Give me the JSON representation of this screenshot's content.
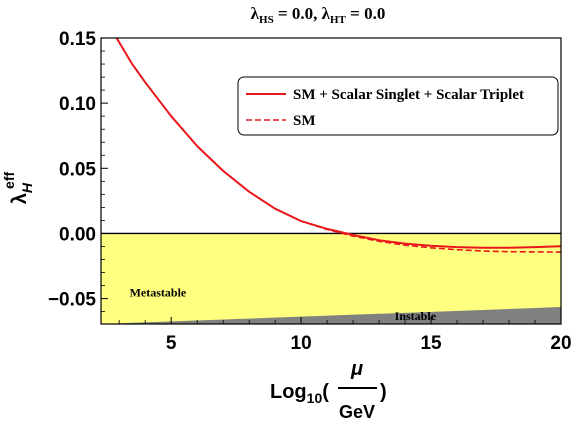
{
  "chart_data": {
    "type": "line",
    "title": {
      "lambda": "λ",
      "sub1": "HS",
      "mid": " = 0.0, ",
      "sub2": "HT",
      "tail": " = 0.0"
    },
    "ylabel": {
      "main": "λ",
      "sub": "H",
      "sup": "eff"
    },
    "xlabel": {
      "pre": "Log",
      "sub": "10",
      "open": "(",
      "num": "μ",
      "den": "GeV",
      "close": ")"
    },
    "xlim": [
      2.3,
      20
    ],
    "ylim": [
      -0.0695,
      0.15
    ],
    "xticks": [
      5,
      10,
      15,
      20
    ],
    "xtick_labels": [
      "5",
      "10",
      "15",
      "20"
    ],
    "yticks": [
      -0.05,
      0.0,
      0.05,
      0.1,
      0.15
    ],
    "ytick_labels": [
      "−0.05",
      "0.00",
      "0.05",
      "0.10",
      "0.15"
    ],
    "colors": {
      "series": "#e8181c",
      "metastable": "#ffff80",
      "unstable": "#808080",
      "zero_line": "#000000"
    },
    "regions": {
      "metastable_label": "Metastable",
      "unstable_label": "Instable",
      "unstable_boundary": {
        "x": [
          2.3,
          20
        ],
        "y": [
          -0.0695,
          -0.0565
        ]
      }
    },
    "legend": {
      "position": "upper-right"
    },
    "series": [
      {
        "name": "SM + Scalar Singlet + Scalar Triplet",
        "style": "solid",
        "x": [
          2.9,
          3.5,
          4,
          5,
          6,
          7,
          8,
          9,
          10,
          11,
          11.5,
          12,
          13,
          14,
          15,
          16,
          17,
          18,
          19,
          20
        ],
        "y": [
          0.15,
          0.13,
          0.116,
          0.09,
          0.067,
          0.048,
          0.032,
          0.019,
          0.0095,
          0.0035,
          0.0012,
          -0.0012,
          -0.0052,
          -0.0078,
          -0.0095,
          -0.0105,
          -0.011,
          -0.011,
          -0.0105,
          -0.0098
        ]
      },
      {
        "name": "SM",
        "style": "dashed",
        "x": [
          2.9,
          3.5,
          4,
          5,
          6,
          7,
          8,
          9,
          10,
          11,
          11.5,
          12,
          13,
          14,
          15,
          16,
          17,
          18,
          19,
          20
        ],
        "y": [
          0.15,
          0.13,
          0.116,
          0.09,
          0.067,
          0.048,
          0.032,
          0.019,
          0.0095,
          0.003,
          0.0005,
          -0.002,
          -0.006,
          -0.009,
          -0.011,
          -0.0125,
          -0.0135,
          -0.014,
          -0.0142,
          -0.0143
        ]
      }
    ]
  }
}
